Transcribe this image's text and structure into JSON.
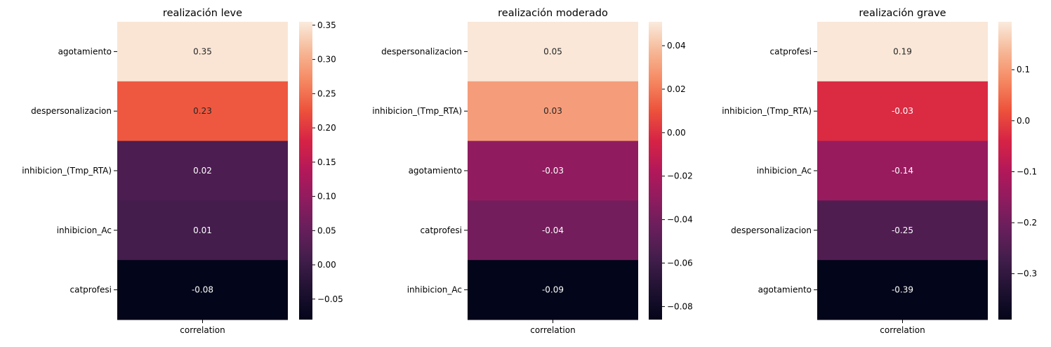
{
  "chart_data": [
    {
      "type": "heatmap",
      "title": "realización leve",
      "xlabel": "",
      "ylabel": "",
      "columns": [
        "correlation"
      ],
      "rows": [
        "agotamiento",
        "despersonalizacion",
        "inhibicion_(Tmp_RTA)",
        "inhibicion_Ac",
        "catprofesi"
      ],
      "values": [
        0.35,
        0.23,
        0.02,
        0.01,
        -0.08
      ],
      "value_labels": [
        "0.35",
        "0.23",
        "0.02",
        "0.01",
        "-0.08"
      ],
      "colorbar": {
        "range": [
          -0.08,
          0.355
        ],
        "ticks": [
          -0.05,
          0.0,
          0.05,
          0.1,
          0.15,
          0.2,
          0.25,
          0.3,
          0.35
        ],
        "tick_labels": [
          "−0.05",
          "0.00",
          "0.05",
          "0.10",
          "0.15",
          "0.20",
          "0.25",
          "0.30",
          "0.35"
        ]
      }
    },
    {
      "type": "heatmap",
      "title": "realización moderado",
      "xlabel": "",
      "ylabel": "",
      "columns": [
        "correlation"
      ],
      "rows": [
        "despersonalizacion",
        "inhibicion_(Tmp_RTA)",
        "agotamiento",
        "catprofesi",
        "inhibicion_Ac"
      ],
      "values": [
        0.05,
        0.03,
        -0.03,
        -0.04,
        -0.09
      ],
      "value_labels": [
        "0.05",
        "0.03",
        "-0.03",
        "-0.04",
        "-0.09"
      ],
      "colorbar": {
        "range": [
          -0.086,
          0.051
        ],
        "ticks": [
          -0.08,
          -0.06,
          -0.04,
          -0.02,
          0.0,
          0.02,
          0.04
        ],
        "tick_labels": [
          "−0.08",
          "−0.06",
          "−0.04",
          "−0.02",
          "0.00",
          "0.02",
          "0.04"
        ]
      }
    },
    {
      "type": "heatmap",
      "title": "realización grave",
      "xlabel": "",
      "ylabel": "",
      "columns": [
        "correlation"
      ],
      "rows": [
        "catprofesi",
        "inhibicion_(Tmp_RTA)",
        "inhibicion_Ac",
        "despersonalizacion",
        "agotamiento"
      ],
      "values": [
        0.19,
        -0.03,
        -0.14,
        -0.25,
        -0.39
      ],
      "value_labels": [
        "0.19",
        "-0.03",
        "-0.14",
        "-0.25",
        "-0.39"
      ],
      "colorbar": {
        "range": [
          -0.39,
          0.194
        ],
        "ticks": [
          -0.3,
          -0.2,
          -0.1,
          0.0,
          0.1
        ],
        "tick_labels": [
          "−0.3",
          "−0.2",
          "−0.1",
          "0.0",
          "0.1"
        ]
      }
    }
  ]
}
